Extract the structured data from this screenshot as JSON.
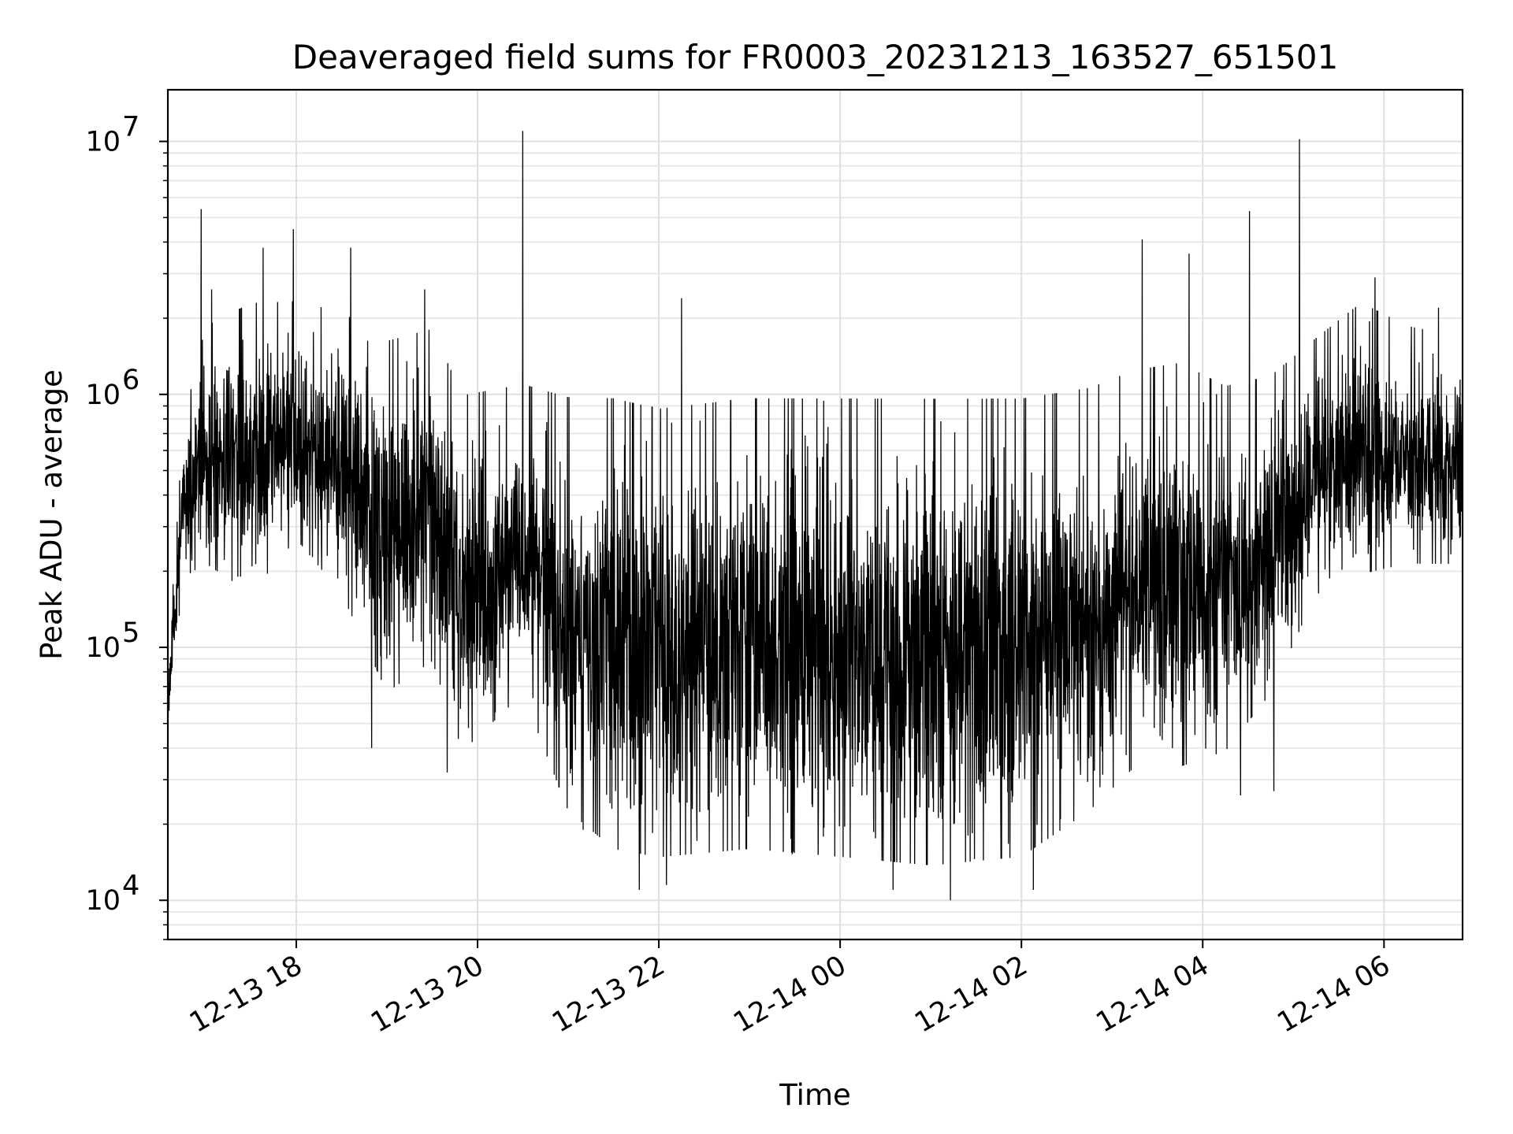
{
  "chart_data": {
    "type": "line",
    "title": "Deaveraged field sums for FR0003_20231213_163527_651501",
    "xlabel": "Time",
    "ylabel": "Peak ADU - average",
    "yscale": "log",
    "ylim": [
      7000,
      16000000
    ],
    "xlim": [
      "2023-12-13 16:35",
      "2023-12-14 06:52"
    ],
    "grid": true,
    "line_color": "#000000",
    "x_ticks": [
      {
        "t": "2023-12-13 18:00",
        "label": "12-13 18"
      },
      {
        "t": "2023-12-13 20:00",
        "label": "12-13 20"
      },
      {
        "t": "2023-12-13 22:00",
        "label": "12-13 22"
      },
      {
        "t": "2023-12-14 00:00",
        "label": "12-14 00"
      },
      {
        "t": "2023-12-14 02:00",
        "label": "12-14 02"
      },
      {
        "t": "2023-12-14 04:00",
        "label": "12-14 04"
      },
      {
        "t": "2023-12-14 06:00",
        "label": "12-14 06"
      }
    ],
    "y_ticks": [
      {
        "value": 10000,
        "base": "10",
        "exp": "4"
      },
      {
        "value": 100000,
        "base": "10",
        "exp": "5"
      },
      {
        "value": 1000000,
        "base": "10",
        "exp": "6"
      },
      {
        "value": 10000000,
        "base": "10",
        "exp": "7"
      }
    ],
    "envelope": [
      {
        "t": "2023-12-13 16:35",
        "min": 45000,
        "max": 90000
      },
      {
        "t": "2023-12-13 16:40",
        "min": 90000,
        "max": 250000
      },
      {
        "t": "2023-12-13 16:45",
        "min": 180000,
        "max": 800000
      },
      {
        "t": "2023-12-13 17:00",
        "min": 200000,
        "max": 2000000
      },
      {
        "t": "2023-12-13 17:30",
        "min": 150000,
        "max": 2500000
      },
      {
        "t": "2023-12-13 18:00",
        "min": 250000,
        "max": 2500000
      },
      {
        "t": "2023-12-13 18:30",
        "min": 150000,
        "max": 2300000
      },
      {
        "t": "2023-12-13 19:00",
        "min": 60000,
        "max": 1800000
      },
      {
        "t": "2023-12-13 19:30",
        "min": 80000,
        "max": 2000000
      },
      {
        "t": "2023-12-13 19:50",
        "min": 35000,
        "max": 1100000
      },
      {
        "t": "2023-12-13 20:30",
        "min": 60000,
        "max": 1200000
      },
      {
        "t": "2023-12-13 21:00",
        "min": 20000,
        "max": 1100000
      },
      {
        "t": "2023-12-13 21:30",
        "min": 14000,
        "max": 1100000
      },
      {
        "t": "2023-12-13 22:00",
        "min": 13000,
        "max": 1000000
      },
      {
        "t": "2023-12-13 23:00",
        "min": 14000,
        "max": 1100000
      },
      {
        "t": "2023-12-14 00:00",
        "min": 13000,
        "max": 1100000
      },
      {
        "t": "2023-12-14 01:00",
        "min": 12000,
        "max": 1100000
      },
      {
        "t": "2023-12-14 02:00",
        "min": 13000,
        "max": 1100000
      },
      {
        "t": "2023-12-14 02:45",
        "min": 20000,
        "max": 1200000
      },
      {
        "t": "2023-12-14 03:15",
        "min": 30000,
        "max": 1400000
      },
      {
        "t": "2023-12-14 03:45",
        "min": 30000,
        "max": 1500000
      },
      {
        "t": "2023-12-14 04:15",
        "min": 35000,
        "max": 1200000
      },
      {
        "t": "2023-12-14 04:45",
        "min": 60000,
        "max": 1300000
      },
      {
        "t": "2023-12-14 05:15",
        "min": 150000,
        "max": 1800000
      },
      {
        "t": "2023-12-14 05:45",
        "min": 180000,
        "max": 2500000
      },
      {
        "t": "2023-12-14 06:15",
        "min": 200000,
        "max": 2000000
      },
      {
        "t": "2023-12-14 06:52",
        "min": 200000,
        "max": 1800000
      }
    ],
    "spikes": [
      {
        "t": "2023-12-13 16:57",
        "value": 5400000
      },
      {
        "t": "2023-12-13 17:04",
        "value": 2600000
      },
      {
        "t": "2023-12-13 17:38",
        "value": 3800000
      },
      {
        "t": "2023-12-13 17:58",
        "value": 4500000
      },
      {
        "t": "2023-12-13 18:36",
        "value": 3800000
      },
      {
        "t": "2023-12-13 19:25",
        "value": 2600000
      },
      {
        "t": "2023-12-13 20:30",
        "value": 11000000
      },
      {
        "t": "2023-12-13 22:15",
        "value": 2400000
      },
      {
        "t": "2023-12-14 03:20",
        "value": 4100000
      },
      {
        "t": "2023-12-14 03:51",
        "value": 3600000
      },
      {
        "t": "2023-12-14 04:31",
        "value": 5300000
      },
      {
        "t": "2023-12-14 05:04",
        "value": 10200000
      },
      {
        "t": "2023-12-14 05:54",
        "value": 2900000
      },
      {
        "t": "2023-12-14 06:36",
        "value": 2200000
      }
    ],
    "dips": [
      {
        "t": "2023-12-13 18:50",
        "value": 40000
      },
      {
        "t": "2023-12-13 19:40",
        "value": 32000
      },
      {
        "t": "2023-12-13 21:10",
        "value": 19000
      },
      {
        "t": "2023-12-13 21:47",
        "value": 11000
      },
      {
        "t": "2023-12-13 22:05",
        "value": 11500
      },
      {
        "t": "2023-12-14 00:35",
        "value": 11000
      },
      {
        "t": "2023-12-14 01:13",
        "value": 10000
      },
      {
        "t": "2023-12-14 02:08",
        "value": 11000
      },
      {
        "t": "2023-12-14 04:25",
        "value": 26000
      },
      {
        "t": "2023-12-14 04:47",
        "value": 27000
      }
    ]
  }
}
